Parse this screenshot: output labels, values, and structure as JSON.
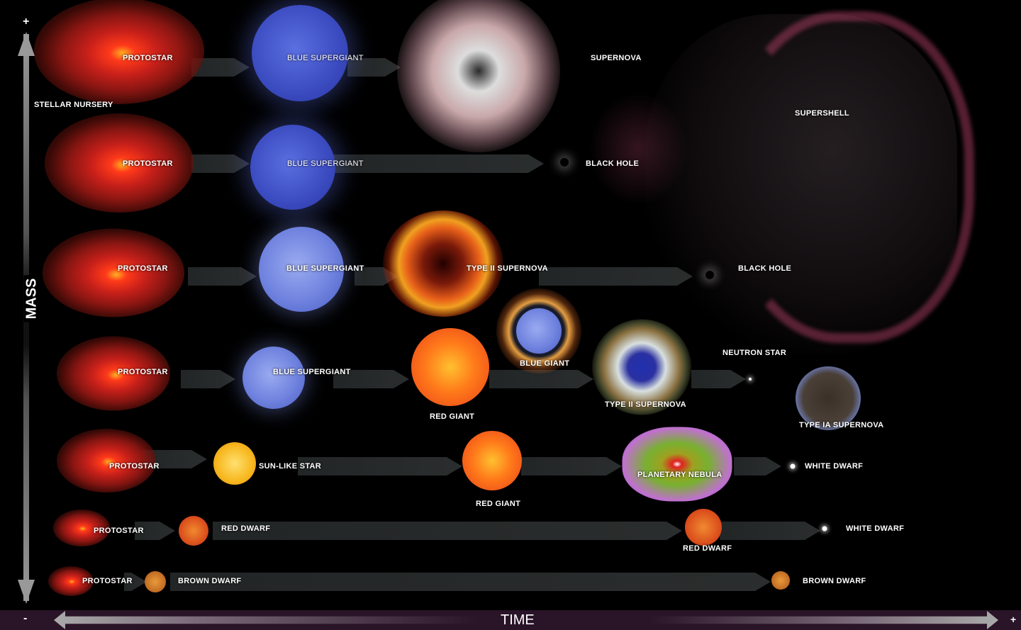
{
  "axes": {
    "mass_label": "MASS",
    "time_label": "TIME",
    "mass_plus": "+",
    "mass_minus": "-",
    "time_minus": "-",
    "time_plus": "+"
  },
  "regions": {
    "stellar_nursery": "STELLAR NURSERY"
  },
  "rows": [
    {
      "stages": [
        "PROTOSTAR",
        "BLUE SUPERGIANT",
        "SUPERNOVA",
        "SUPERSHELL"
      ]
    },
    {
      "stages": [
        "PROTOSTAR",
        "BLUE SUPERGIANT",
        "BLACK HOLE"
      ]
    },
    {
      "stages": [
        "PROTOSTAR",
        "BLUE SUPERGIANT",
        "TYPE II SUPERNOVA",
        "BLACK HOLE"
      ]
    },
    {
      "stages": [
        "PROTOSTAR",
        "BLUE SUPERGIANT",
        "RED GIANT",
        "BLUE GIANT",
        "TYPE II SUPERNOVA",
        "NEUTRON STAR",
        "TYPE IA SUPERNOVA"
      ]
    },
    {
      "stages": [
        "PROTOSTAR",
        "SUN-LIKE STAR",
        "RED GIANT",
        "PLANETARY NEBULA",
        "WHITE DWARF"
      ]
    },
    {
      "stages": [
        "PROTOSTAR",
        "RED DWARF",
        "RED DWARF",
        "WHITE DWARF"
      ]
    },
    {
      "stages": [
        "PROTOSTAR",
        "BROWN DWARF",
        "BROWN DWARF"
      ]
    }
  ],
  "colors": {
    "time_bar": "#2a1428",
    "background": "#000000",
    "arrow": "#2d3030"
  }
}
